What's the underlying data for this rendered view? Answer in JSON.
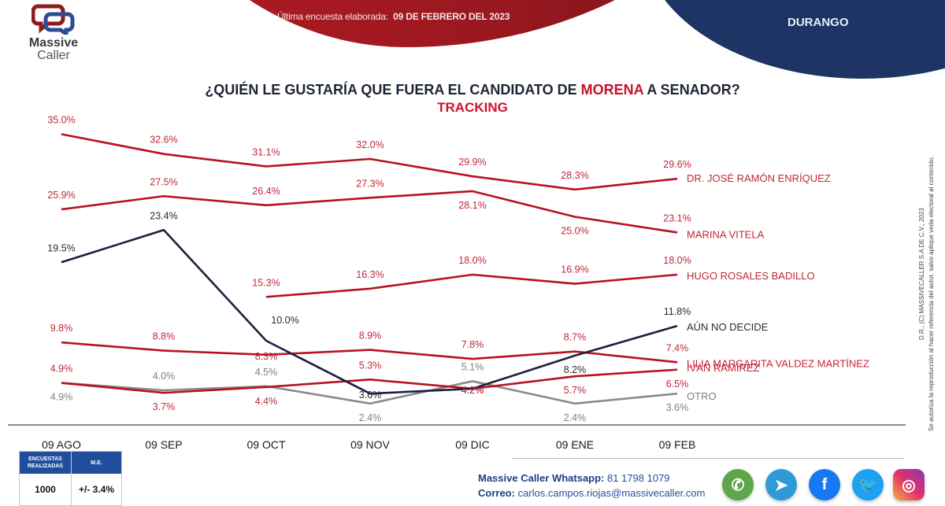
{
  "header": {
    "survey_date_label": "Última encuesta elaborada:",
    "survey_date_value": "09 DE FEBRERO DEL 2023",
    "state": "DURANGO"
  },
  "logo": {
    "line1": "Massive",
    "line2": "Caller"
  },
  "title": {
    "part1": "¿QUIÉN LE GUSTARÍA QUE FUERA EL CANDIDATO DE ",
    "highlight": "MORENA",
    "part2": " A SENADOR?",
    "subtitle": "TRACKING"
  },
  "colors": {
    "red": "#b8121f",
    "navy": "#1b2040",
    "gray": "#8a8a8a",
    "label_red": "#c0273a",
    "label_dark": "#2b2b2b",
    "label_gray": "#808080"
  },
  "chart_data": {
    "type": "line",
    "title": "¿QUIÉN LE GUSTARÍA QUE FUERA EL CANDIDATO DE MORENA A SENADOR? TRACKING",
    "xlabel": "",
    "ylabel": "",
    "categories": [
      "09 AGO",
      "09 SEP",
      "09 OCT",
      "09 NOV",
      "09 DIC",
      "09 ENE",
      "09 FEB"
    ],
    "grid": false,
    "legend": "inline-right",
    "series": [
      {
        "name": "DR. JOSÉ RAMÓN ENRÍQUEZ",
        "color": "red",
        "values": [
          35.0,
          32.6,
          31.1,
          32.0,
          29.9,
          28.3,
          29.6
        ],
        "label_pos": [
          "above",
          "above",
          "above",
          "above",
          "above",
          "above",
          "above"
        ]
      },
      {
        "name": "MARINA VITELA",
        "color": "red",
        "values": [
          25.9,
          27.5,
          26.4,
          27.3,
          28.1,
          25.0,
          23.1
        ],
        "label_pos": [
          "above",
          "above",
          "above",
          "above",
          "below",
          "below",
          "above"
        ]
      },
      {
        "name": "HUGO ROSALES BADILLO",
        "color": "red",
        "values": [
          null,
          null,
          15.3,
          16.3,
          18.0,
          16.9,
          18.0
        ],
        "label_pos": [
          null,
          null,
          "above",
          "above",
          "above",
          "above",
          "above"
        ]
      },
      {
        "name": "AÚN NO DECIDE",
        "color": "navy",
        "values": [
          19.5,
          23.4,
          10.0,
          3.6,
          4.2,
          8.2,
          11.8
        ],
        "label_pos": [
          "above",
          "above",
          "right",
          "on",
          "on",
          "below",
          "above"
        ]
      },
      {
        "name": "LILIA MARGARITA VALDEZ MARTÍNEZ",
        "color": "red",
        "values": [
          9.8,
          8.8,
          8.3,
          8.9,
          7.8,
          8.7,
          7.4
        ],
        "label_pos": [
          "above",
          "above",
          "on",
          "above",
          "above",
          "above",
          "above"
        ]
      },
      {
        "name": "IVÁN RAMÍREZ",
        "color": "red",
        "values": [
          4.9,
          3.7,
          4.4,
          5.3,
          4.2,
          5.7,
          6.5
        ],
        "label_pos": [
          "above",
          "below",
          "below",
          "above",
          "on",
          "below",
          "below"
        ]
      },
      {
        "name": "OTRO",
        "color": "gray",
        "values": [
          4.9,
          4.0,
          4.5,
          2.4,
          5.1,
          2.4,
          3.6
        ],
        "label_pos": [
          "below",
          "above",
          "above",
          "below",
          "above",
          "below",
          "below"
        ]
      }
    ]
  },
  "stats": {
    "surveys_label": "ENCUESTAS REALIZADAS",
    "surveys_value": "1000",
    "me_label": "M.E.",
    "me_value": "+/- 3.4%"
  },
  "contact": {
    "whatsapp_label": "Massive Caller Whatsapp:",
    "whatsapp_value": "81 1798 1079",
    "email_label": "Correo:",
    "email_value": "carlos.campos.riojas@massivecaller.com"
  },
  "social": [
    {
      "name": "whatsapp",
      "glyph": "✆",
      "color": "#5fa64a"
    },
    {
      "name": "telegram",
      "glyph": "➤",
      "color": "#2e9bd6"
    },
    {
      "name": "facebook",
      "glyph": "f",
      "color": "#1877f2"
    },
    {
      "name": "twitter",
      "glyph": "🐦",
      "color": "#1da1f2"
    },
    {
      "name": "instagram",
      "glyph": "◎",
      "color": "#c13584"
    }
  ],
  "side_note": {
    "line1": "D.R., (C) MASSIVECALLER S.A DE C.V., 2023",
    "line2": "Se autoriza la reproducción al hacer referencia del autor, salvo aplique veda electoral al contenido."
  }
}
